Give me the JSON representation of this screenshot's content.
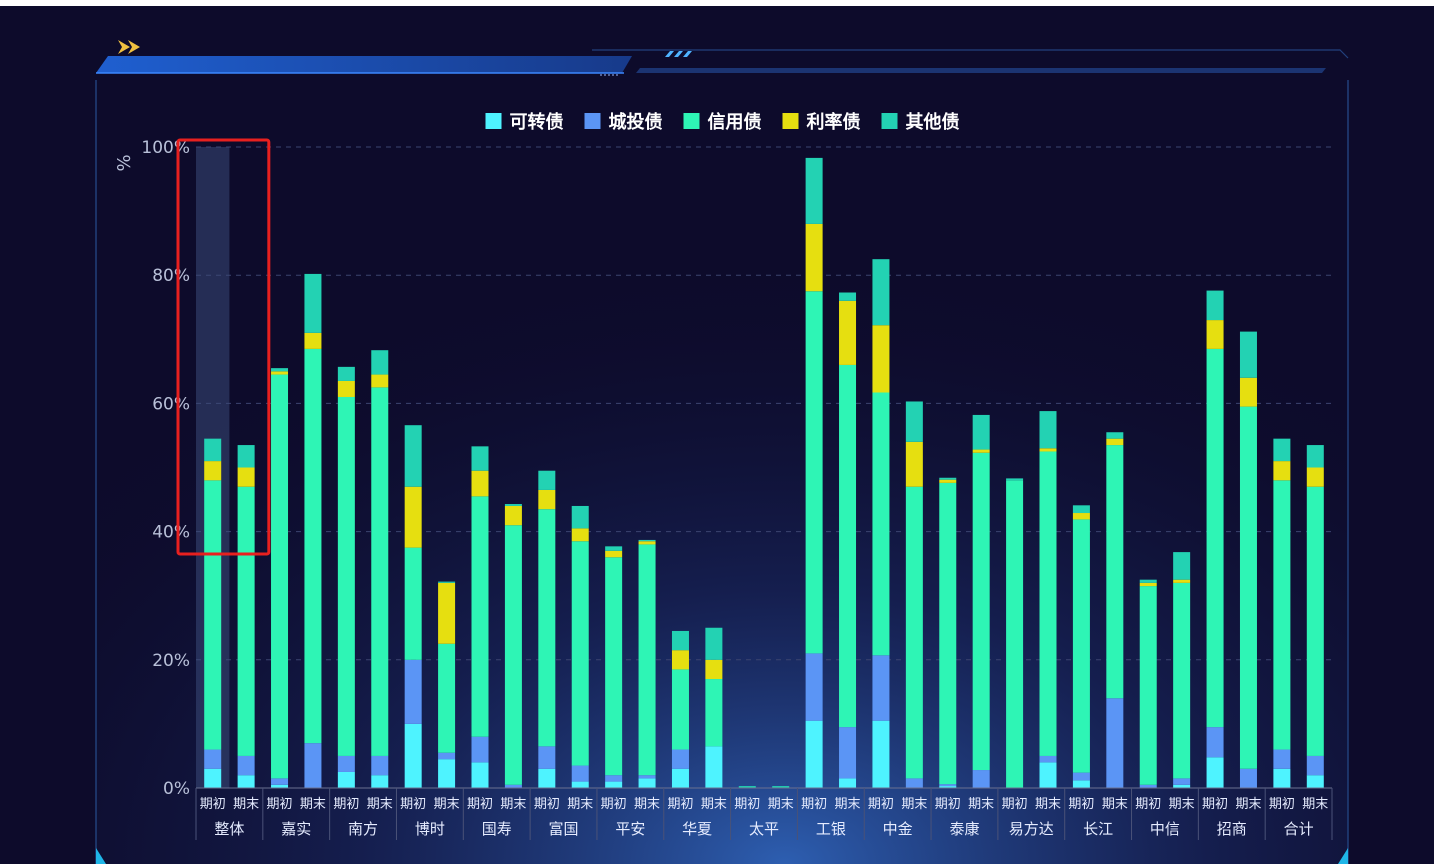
{
  "colors": {
    "background": "#0d0b2b",
    "panel_glow": "#2b5aa8",
    "frame": "#2a4f8f",
    "highlight_box": "#e8201f",
    "hover_band": "#3a4a78"
  },
  "chart_data": {
    "type": "bar",
    "stacked": true,
    "ylabel": "%",
    "ylim": [
      0,
      100
    ],
    "yticks": [
      "0%",
      "20%",
      "40%",
      "60%",
      "80%",
      "100%"
    ],
    "grid": true,
    "legend_position": "top-center",
    "highlighted_group": "整体",
    "groups": [
      "整体",
      "嘉实",
      "南方",
      "博时",
      "国寿",
      "富国",
      "平安",
      "华夏",
      "太平",
      "工银",
      "中金",
      "泰康",
      "易方达",
      "长江",
      "中信",
      "招商",
      "合计"
    ],
    "periods": [
      "期初",
      "期末"
    ],
    "categories": [
      "期初",
      "期末",
      "期初",
      "期末",
      "期初",
      "期末",
      "期初",
      "期末",
      "期初",
      "期末",
      "期初",
      "期末",
      "期初",
      "期末",
      "期初",
      "期末",
      "期初",
      "期末",
      "期初",
      "期末",
      "期初",
      "期末",
      "期初",
      "期末",
      "期初",
      "期末",
      "期初",
      "期末",
      "期初",
      "期末",
      "期初",
      "期末",
      "期初",
      "期末"
    ],
    "series": [
      {
        "name": "可转债",
        "color": "#4ef3ff",
        "values": [
          3,
          2,
          0.5,
          0,
          2.5,
          2,
          10,
          4.5,
          4,
          0,
          3,
          1,
          1,
          1.5,
          3,
          6.5,
          0,
          0,
          10.5,
          1.5,
          10.5,
          0,
          0.3,
          0,
          0,
          4,
          1.2,
          0,
          0,
          0.5,
          4.8,
          0,
          3,
          2
        ]
      },
      {
        "name": "城投债",
        "color": "#5b95f5",
        "values": [
          3,
          3,
          1,
          7,
          2.5,
          3,
          10,
          1,
          4,
          0.5,
          3.5,
          2.5,
          1,
          0.5,
          3,
          0,
          0,
          0,
          10.5,
          8,
          10.2,
          1.5,
          0.3,
          2.8,
          0,
          1,
          1.2,
          14,
          0.5,
          1,
          4.7,
          3,
          3,
          3
        ]
      },
      {
        "name": "信用债",
        "color": "#2ef5b5",
        "values": [
          42,
          42,
          63,
          61.5,
          56,
          57.5,
          17.5,
          17,
          37.5,
          40.5,
          37,
          35,
          34,
          36,
          12.5,
          10.5,
          0,
          0,
          56.5,
          56.5,
          41,
          45.5,
          47,
          49.5,
          48,
          47.5,
          39.5,
          39.5,
          31,
          30.5,
          59,
          56.5,
          42,
          42
        ]
      },
      {
        "name": "利率债",
        "color": "#e6df10",
        "values": [
          3,
          3,
          0.5,
          2.5,
          2.5,
          2,
          9.5,
          9.5,
          4,
          3,
          3,
          2,
          1,
          0.5,
          3,
          3,
          0,
          0,
          10.5,
          10,
          10.5,
          7,
          0.5,
          0.5,
          0,
          0.5,
          1,
          1,
          0.5,
          0.5,
          4.5,
          4.5,
          3,
          3
        ]
      },
      {
        "name": "其他债",
        "color": "#23d2b3",
        "values": [
          3.5,
          3.5,
          0.5,
          9.2,
          2.2,
          3.8,
          9.6,
          0.2,
          3.8,
          0.3,
          3,
          3.5,
          0.7,
          0.2,
          3,
          5,
          0.3,
          0.3,
          10.3,
          1.3,
          10.3,
          6.3,
          0.3,
          5.4,
          0.3,
          5.8,
          1.2,
          1,
          0.5,
          4.3,
          4.6,
          7.2,
          3.5,
          3.5
        ]
      }
    ]
  }
}
